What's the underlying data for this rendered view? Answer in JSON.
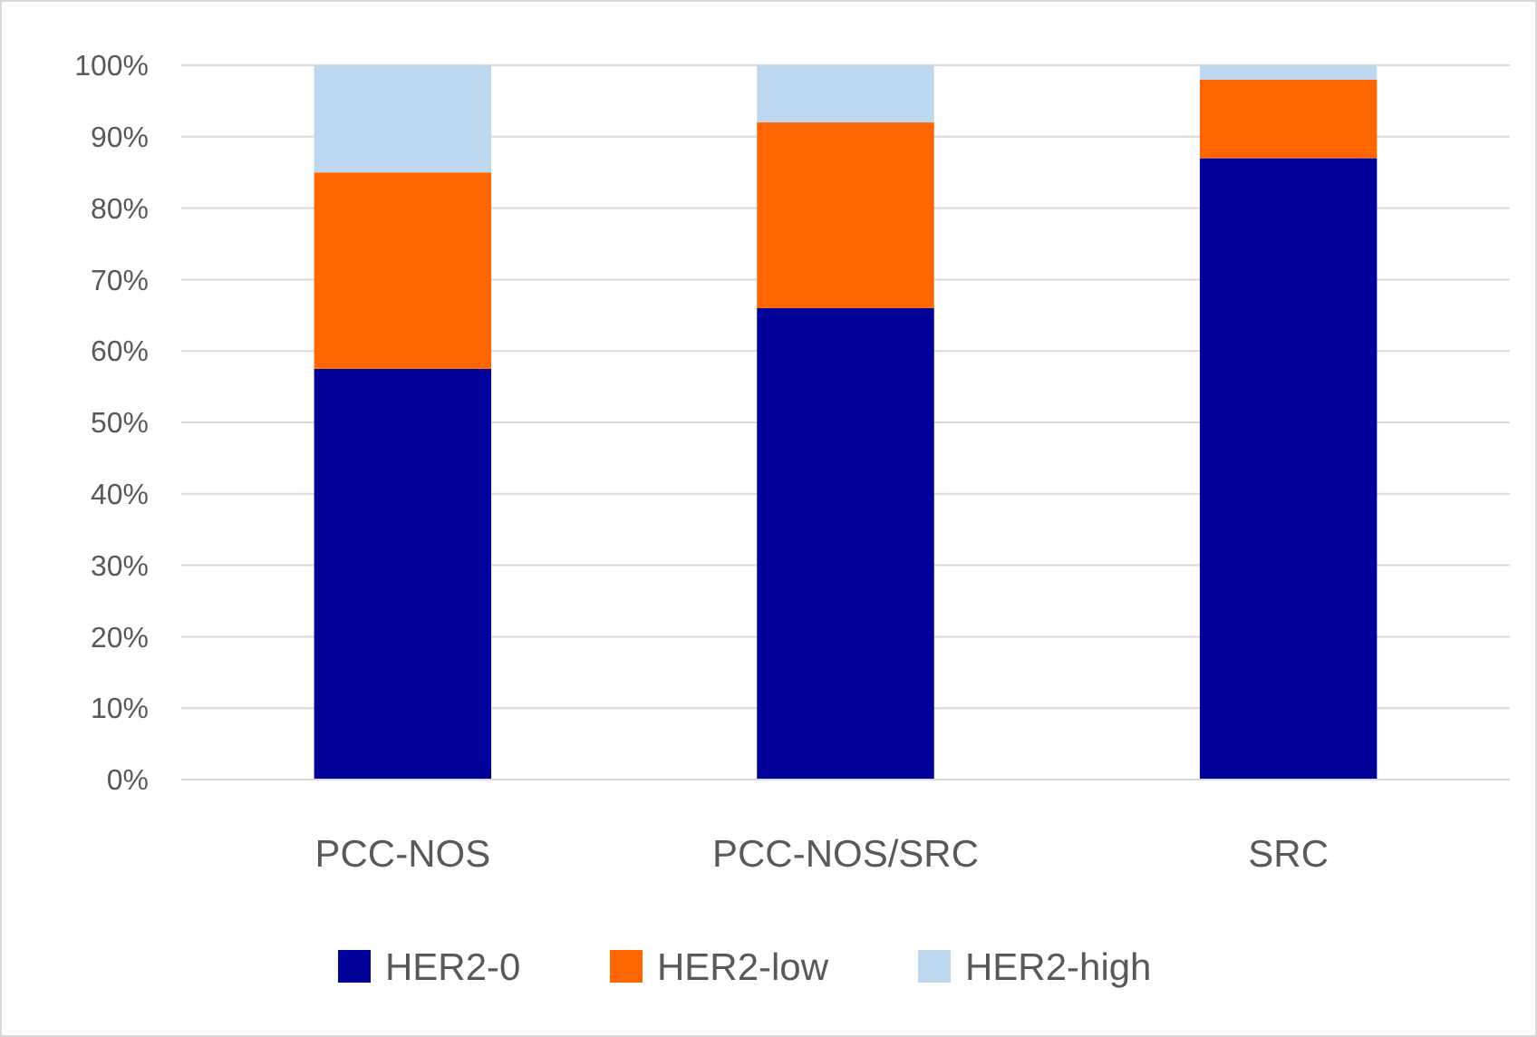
{
  "chart_data": {
    "type": "bar",
    "stacked": true,
    "categories": [
      "PCC-NOS",
      "PCC-NOS/SRC",
      "SRC"
    ],
    "series": [
      {
        "name": "HER2-0",
        "color": "#000099",
        "values": [
          57.5,
          66,
          87
        ]
      },
      {
        "name": "HER2-low",
        "color": "#ff6600",
        "values": [
          27.5,
          26,
          11
        ]
      },
      {
        "name": "HER2-high",
        "color": "#bdd7ee",
        "values": [
          15,
          8,
          2
        ]
      }
    ],
    "ylim": [
      0,
      100
    ],
    "yticks": [
      {
        "value": 0,
        "label": "0%"
      },
      {
        "value": 10,
        "label": "10%"
      },
      {
        "value": 20,
        "label": "20%"
      },
      {
        "value": 30,
        "label": "30%"
      },
      {
        "value": 40,
        "label": "40%"
      },
      {
        "value": 50,
        "label": "50%"
      },
      {
        "value": 60,
        "label": "60%"
      },
      {
        "value": 70,
        "label": "70%"
      },
      {
        "value": 80,
        "label": "80%"
      },
      {
        "value": 90,
        "label": "90%"
      },
      {
        "value": 100,
        "label": "100%"
      }
    ],
    "grid": "y",
    "legend": "bottom"
  }
}
